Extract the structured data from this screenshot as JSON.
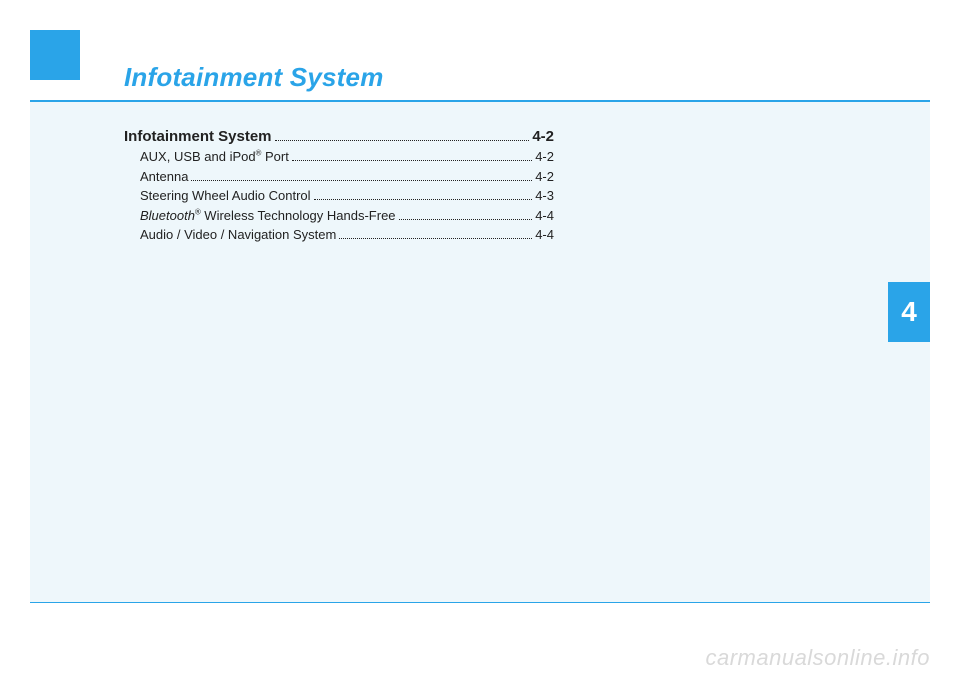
{
  "title": "Infotainment System",
  "side_tab": "4",
  "toc": {
    "main": {
      "label": "Infotainment System",
      "page": "4-2"
    },
    "items": [
      {
        "label_pre": "AUX, USB and iPod",
        "reg": "®",
        "label_post": " Port ",
        "page": "4-2"
      },
      {
        "label_pre": "Antenna ",
        "reg": "",
        "label_post": "",
        "page": "4-2"
      },
      {
        "label_pre": "Steering Wheel Audio Control",
        "reg": "",
        "label_post": "",
        "page": "4-3"
      },
      {
        "label_pre_italic": "Bluetooth",
        "reg": "®",
        "label_post": " Wireless Technology Hands-Free",
        "page": "4-4"
      },
      {
        "label_pre": "Audio / Video / Navigation System ",
        "reg": "",
        "label_post": "",
        "page": "4-4"
      }
    ]
  },
  "watermark": "carmanualsonline.info",
  "colors": {
    "accent": "#2aa4e8",
    "light_bg": "#eef7fb",
    "watermark": "#d9d9d9",
    "text": "#222"
  }
}
